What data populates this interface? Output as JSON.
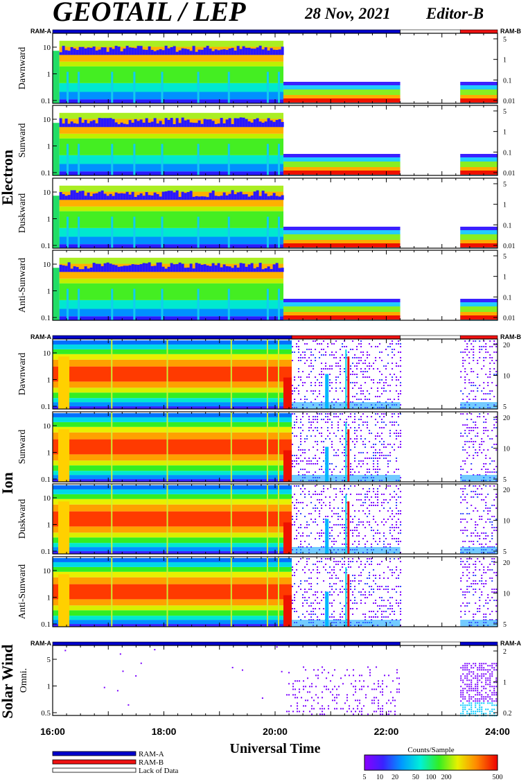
{
  "header": {
    "title": "GEOTAIL / LEP",
    "date": "28 Nov, 2021",
    "editor": "Editor-B"
  },
  "modes": {
    "ram_a": "RAM-A",
    "ram_b": "RAM-B",
    "lack": "Lack of Data",
    "colors": {
      "ram_a": "#0000cc",
      "ram_b": "#ee1111",
      "lack": "#ffffff"
    }
  },
  "groups": {
    "electron": "Electron",
    "ion": "Ion",
    "solar_wind": "Solar Wind"
  },
  "time_axis": {
    "label": "Universal Time",
    "ticks": [
      "16:00",
      "18:00",
      "20:00",
      "22:00",
      "24:00"
    ],
    "start_hour": 16,
    "end_hour": 24
  },
  "colorbar": {
    "title": "Counts/Sample",
    "ticks": [
      "5",
      "10",
      "20",
      "50",
      "100",
      "200",
      "500"
    ]
  },
  "chart_data": [
    {
      "type": "heatmap",
      "group": "Electron",
      "panel": "Dawnward",
      "ylabel": "Dawnward",
      "y_scale": "log",
      "left_ticks": [
        "0.1",
        "1",
        "10"
      ],
      "right_ticks": [
        "0.01",
        "0.1",
        "1",
        "5"
      ],
      "mode_bar": [
        {
          "mode": "RAM-A",
          "from": 16.0,
          "to": 22.25
        },
        {
          "mode": "Lack of Data",
          "from": 22.25,
          "to": 23.33
        },
        {
          "mode": "RAM-B",
          "from": 23.33,
          "to": 24.0
        }
      ]
    },
    {
      "type": "heatmap",
      "group": "Electron",
      "panel": "Sunward",
      "ylabel": "Sunward",
      "y_scale": "log",
      "left_ticks": [
        "0.1",
        "1",
        "10"
      ],
      "right_ticks": [
        "0.01",
        "0.1",
        "1",
        "5"
      ]
    },
    {
      "type": "heatmap",
      "group": "Electron",
      "panel": "Duskward",
      "ylabel": "Duskward",
      "y_scale": "log",
      "left_ticks": [
        "0.1",
        "1",
        "10"
      ],
      "right_ticks": [
        "0.01",
        "0.1",
        "1",
        "5"
      ]
    },
    {
      "type": "heatmap",
      "group": "Electron",
      "panel": "Anti-Sunward",
      "ylabel": "Anti-Sunward",
      "y_scale": "log",
      "left_ticks": [
        "0.1",
        "1",
        "10"
      ],
      "right_ticks": [
        "0.01",
        "0.1",
        "1",
        "5"
      ]
    },
    {
      "type": "heatmap",
      "group": "Ion",
      "panel": "Dawnward",
      "ylabel": "Dawnward",
      "y_scale": "log",
      "left_ticks": [
        "0.1",
        "1",
        "10"
      ],
      "right_ticks": [
        "5",
        "10",
        "20"
      ],
      "mode_bar": [
        {
          "mode": "RAM-A",
          "from": 16.0,
          "to": 20.3
        },
        {
          "mode": "RAM-B",
          "from": 20.3,
          "to": 22.25
        },
        {
          "mode": "Lack of Data",
          "from": 22.25,
          "to": 23.33
        },
        {
          "mode": "RAM-B",
          "from": 23.33,
          "to": 24.0
        }
      ]
    },
    {
      "type": "heatmap",
      "group": "Ion",
      "panel": "Sunward",
      "ylabel": "Sunward",
      "y_scale": "log",
      "left_ticks": [
        "0.1",
        "1",
        "10"
      ],
      "right_ticks": [
        "5",
        "10",
        "20"
      ]
    },
    {
      "type": "heatmap",
      "group": "Ion",
      "panel": "Duskward",
      "ylabel": "Duskward",
      "y_scale": "log",
      "left_ticks": [
        "0.1",
        "1",
        "10"
      ],
      "right_ticks": [
        "5",
        "10",
        "20"
      ]
    },
    {
      "type": "heatmap",
      "group": "Ion",
      "panel": "Anti-Sunward",
      "ylabel": "Anti-Sunward",
      "y_scale": "log",
      "left_ticks": [
        "0.1",
        "1",
        "10"
      ],
      "right_ticks": [
        "5",
        "10",
        "20"
      ]
    },
    {
      "type": "heatmap",
      "group": "Solar Wind",
      "panel": "Omni.",
      "ylabel": "Omni.",
      "y_scale": "log",
      "left_ticks": [
        "0.5",
        "1",
        "5"
      ],
      "right_ticks": [
        "0.2",
        "1",
        "2"
      ],
      "mode_bar": [
        {
          "mode": "RAM-A",
          "from": 16.0,
          "to": 22.25
        },
        {
          "mode": "Lack of Data",
          "from": 22.25,
          "to": 23.33
        },
        {
          "mode": "RAM-A",
          "from": 23.33,
          "to": 24.0
        }
      ]
    }
  ]
}
